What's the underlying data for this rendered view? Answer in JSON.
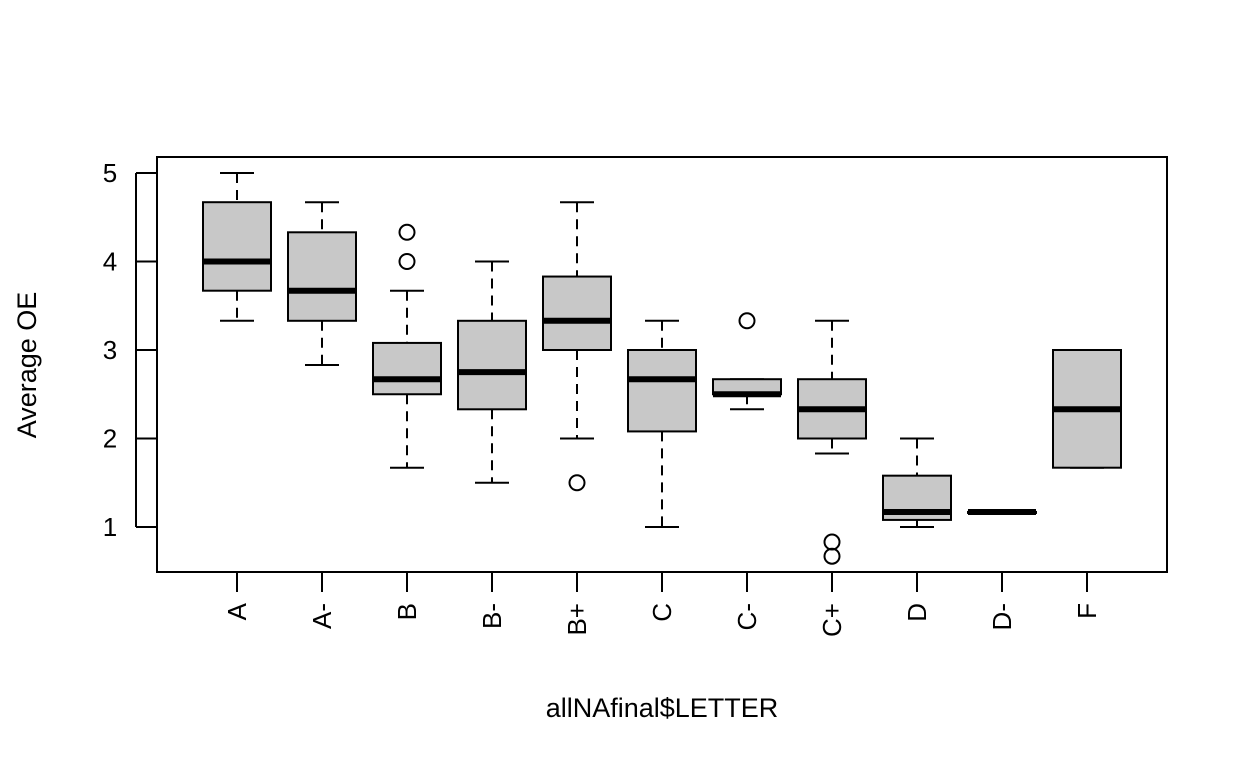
{
  "chart_data": {
    "type": "boxplot",
    "title": "",
    "xlabel": "allNAfinal$LETTER",
    "ylabel": "Average OE",
    "ylim": [
      0.5,
      5.2
    ],
    "yticks": [
      1,
      2,
      3,
      4,
      5
    ],
    "grid": false,
    "legend": "none",
    "box_fill": "#c8c8c8",
    "categories": [
      "A",
      "A-",
      "B",
      "B-",
      "B+",
      "C",
      "C-",
      "C+",
      "D",
      "D-",
      "F"
    ],
    "boxes": [
      {
        "label": "A",
        "whisker_low": 3.33,
        "q1": 3.67,
        "median": 4.0,
        "q3": 4.67,
        "whisker_high": 5.0,
        "outliers": []
      },
      {
        "label": "A-",
        "whisker_low": 2.83,
        "q1": 3.33,
        "median": 3.67,
        "q3": 4.33,
        "whisker_high": 4.67,
        "outliers": []
      },
      {
        "label": "B",
        "whisker_low": 1.67,
        "q1": 2.5,
        "median": 2.67,
        "q3": 3.08,
        "whisker_high": 3.67,
        "outliers": [
          4.0,
          4.33
        ]
      },
      {
        "label": "B-",
        "whisker_low": 1.5,
        "q1": 2.33,
        "median": 2.75,
        "q3": 3.33,
        "whisker_high": 4.0,
        "outliers": []
      },
      {
        "label": "B+",
        "whisker_low": 2.0,
        "q1": 3.0,
        "median": 3.33,
        "q3": 3.83,
        "whisker_high": 4.67,
        "outliers": [
          1.5
        ]
      },
      {
        "label": "C",
        "whisker_low": 1.0,
        "q1": 2.08,
        "median": 2.67,
        "q3": 3.0,
        "whisker_high": 3.33,
        "outliers": []
      },
      {
        "label": "C-",
        "whisker_low": 2.33,
        "q1": 2.5,
        "median": 2.5,
        "q3": 2.67,
        "whisker_high": 2.67,
        "outliers": [
          3.33
        ]
      },
      {
        "label": "C+",
        "whisker_low": 1.83,
        "q1": 2.0,
        "median": 2.33,
        "q3": 2.67,
        "whisker_high": 3.33,
        "outliers": [
          0.83,
          0.67
        ]
      },
      {
        "label": "D",
        "whisker_low": 1.0,
        "q1": 1.08,
        "median": 1.17,
        "q3": 1.58,
        "whisker_high": 2.0,
        "outliers": []
      },
      {
        "label": "D-",
        "whisker_low": 1.17,
        "q1": 1.17,
        "median": 1.17,
        "q3": 1.17,
        "whisker_high": 1.17,
        "outliers": []
      },
      {
        "label": "F",
        "whisker_low": 1.67,
        "q1": 1.67,
        "median": 2.33,
        "q3": 3.0,
        "whisker_high": 3.0,
        "outliers": []
      }
    ]
  }
}
